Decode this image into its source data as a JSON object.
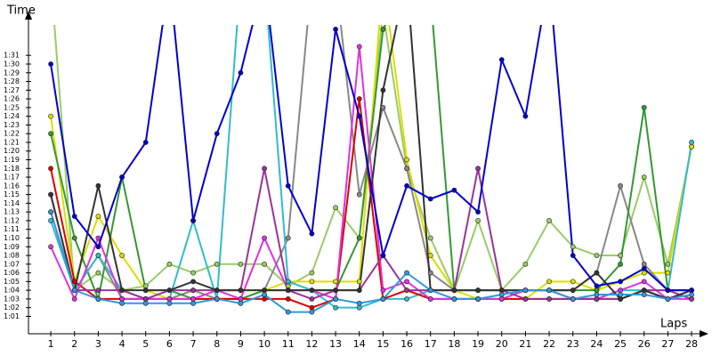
{
  "chart_data": {
    "type": "line",
    "x_label": "Laps",
    "y_label": "Time",
    "x": [
      1,
      2,
      3,
      4,
      5,
      6,
      7,
      8,
      9,
      10,
      11,
      12,
      13,
      14,
      15,
      16,
      17,
      18,
      19,
      20,
      21,
      22,
      23,
      24,
      25,
      26,
      27,
      28
    ],
    "xlim": [
      0.06,
      28.56
    ],
    "xticks": [
      1,
      2,
      3,
      4,
      5,
      6,
      7,
      8,
      9,
      10,
      11,
      12,
      13,
      14,
      15,
      16,
      17,
      18,
      19,
      20,
      21,
      22,
      23,
      24,
      25,
      26,
      27,
      28
    ],
    "ylim": [
      59,
      94.5
    ],
    "yticks": [
      {
        "value": 61,
        "label": "1:01"
      },
      {
        "value": 62,
        "label": "1:02"
      },
      {
        "value": 63,
        "label": "1:03"
      },
      {
        "value": 64,
        "label": "1:04"
      },
      {
        "value": 65,
        "label": "1:05"
      },
      {
        "value": 66,
        "label": "1:06"
      },
      {
        "value": 67,
        "label": "1:07"
      },
      {
        "value": 68,
        "label": "1:08"
      },
      {
        "value": 69,
        "label": "1:09"
      },
      {
        "value": 70,
        "label": "1:10"
      },
      {
        "value": 71,
        "label": "1:11"
      },
      {
        "value": 72,
        "label": "1:12"
      },
      {
        "value": 73,
        "label": "1:13"
      },
      {
        "value": 74,
        "label": "1:14"
      },
      {
        "value": 75,
        "label": "1:15"
      },
      {
        "value": 76,
        "label": "1:16"
      },
      {
        "value": 77,
        "label": "1:17"
      },
      {
        "value": 78,
        "label": "1:18"
      },
      {
        "value": 79,
        "label": "1:19"
      },
      {
        "value": 80,
        "label": "1:20"
      },
      {
        "value": 81,
        "label": "1:21"
      },
      {
        "value": 82,
        "label": "1:22"
      },
      {
        "value": 83,
        "label": "1:23"
      },
      {
        "value": 84,
        "label": "1:24"
      },
      {
        "value": 85,
        "label": "1:25"
      },
      {
        "value": 86,
        "label": "1:26"
      },
      {
        "value": 87,
        "label": "1:27"
      },
      {
        "value": 88,
        "label": "1:28"
      },
      {
        "value": 89,
        "label": "1:29"
      },
      {
        "value": 90,
        "label": "1:30"
      },
      {
        "value": 91,
        "label": "1:31"
      }
    ],
    "grid": false,
    "series": [
      {
        "color": "#99cc66",
        "values": [
          100,
          64,
          66,
          64,
          64.5,
          67,
          66,
          67,
          67,
          67,
          64.5,
          66,
          73.5,
          70,
          96,
          78,
          70,
          64,
          72,
          64,
          67,
          72,
          69,
          68,
          68,
          77,
          67,
          80.5
        ]
      },
      {
        "color": "#dddd00",
        "values": [
          84,
          65,
          72.5,
          68,
          64,
          63,
          64,
          64,
          64,
          64,
          65,
          65,
          65,
          65,
          100,
          79,
          68,
          64,
          63,
          63,
          63,
          65,
          65,
          64,
          65,
          66,
          66,
          80.5
        ]
      },
      {
        "color": "#888888",
        "values": [
          75,
          64,
          68,
          63,
          63,
          63,
          64,
          63,
          63,
          64,
          70,
          100,
          100,
          75,
          85,
          78,
          66,
          64,
          64,
          64,
          64,
          64,
          64,
          66,
          76,
          67,
          64,
          64
        ]
      },
      {
        "color": "#339933",
        "values": [
          82,
          70,
          63,
          77,
          64,
          64,
          63,
          63,
          63,
          64,
          64,
          64,
          64,
          70,
          94,
          100,
          98,
          64,
          64,
          64,
          64,
          64,
          64,
          64,
          67,
          85,
          64,
          64
        ]
      },
      {
        "color": "#33bbcc",
        "values": [
          72,
          64,
          68,
          64,
          63,
          63,
          72,
          63,
          100,
          100,
          65,
          64,
          62,
          62,
          63,
          63,
          64,
          64,
          64,
          64,
          64,
          64,
          63,
          63,
          64,
          64,
          64,
          81
        ]
      },
      {
        "color": "#dd0000",
        "values": [
          78,
          65,
          63,
          63,
          63,
          63,
          63,
          63,
          63,
          63,
          63,
          62,
          63,
          86,
          63,
          64,
          63,
          63,
          63,
          63,
          63,
          63,
          63,
          63,
          63,
          64,
          63,
          64
        ]
      },
      {
        "color": "#dd33dd",
        "values": [
          69,
          63,
          70,
          63,
          63,
          63,
          63,
          64,
          63,
          70,
          64,
          64,
          63,
          92,
          64,
          65,
          63,
          63,
          63,
          63,
          64,
          64,
          63,
          63,
          64,
          65,
          63,
          63
        ]
      },
      {
        "color": "#993399",
        "values": [
          73,
          64,
          64,
          64,
          63,
          64,
          64,
          64,
          64,
          78,
          64,
          63,
          64,
          64,
          68,
          64,
          64,
          64,
          78,
          64,
          63,
          63,
          63,
          63,
          63,
          64,
          64,
          63
        ]
      },
      {
        "color": "#333333",
        "values": [
          75,
          64,
          76,
          64,
          64,
          64,
          65,
          64,
          64,
          64,
          64,
          64,
          64,
          64,
          87,
          100,
          64,
          64,
          64,
          64,
          64,
          64,
          64,
          66,
          63,
          64,
          63,
          64
        ]
      },
      {
        "color": "#3399dd",
        "values": [
          73,
          64,
          63,
          62.5,
          62.5,
          62.5,
          62.5,
          63,
          62.5,
          63.5,
          61.5,
          61.5,
          63,
          62.5,
          63,
          66,
          64,
          63,
          63,
          63.5,
          64,
          64,
          63,
          63.5,
          63.5,
          63.5,
          63,
          63.5
        ]
      },
      {
        "color": "#0000cc",
        "values": [
          90,
          72.5,
          69,
          77,
          81,
          100,
          72,
          82,
          89,
          100,
          76,
          70.5,
          94,
          84,
          68,
          76,
          74.5,
          75.5,
          73,
          90.5,
          84,
          100,
          68,
          64.5,
          65,
          66.5,
          64,
          64
        ]
      }
    ]
  }
}
